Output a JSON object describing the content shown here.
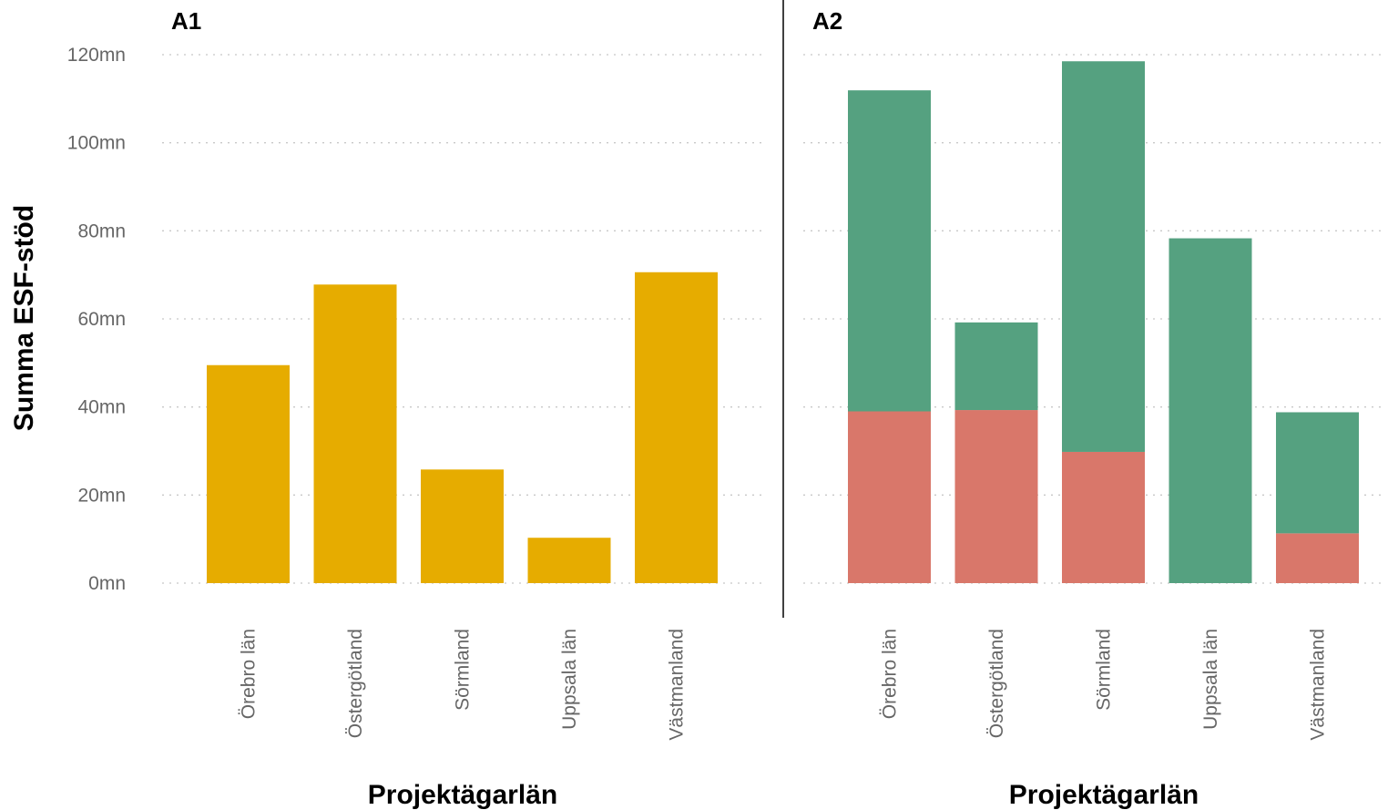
{
  "chart_data": [
    {
      "panel": "A1",
      "type": "bar",
      "title": "A1",
      "xlabel": "Projektägarlän",
      "ylabel": "Summa ESF-stöd",
      "categories": [
        "Örebro län",
        "Östergötland",
        "Sörmland",
        "Uppsala län",
        "Västmanland"
      ],
      "series": [
        {
          "values": [
            49.5,
            67.8,
            25.8,
            10.3,
            70.6
          ],
          "color": "#E6AC00"
        }
      ],
      "ylim": [
        0,
        120
      ],
      "yticks": [
        0,
        20,
        40,
        60,
        80,
        100,
        120
      ],
      "ytick_labels": [
        "0mn",
        "20mn",
        "40mn",
        "60mn",
        "80mn",
        "100mn",
        "120mn"
      ],
      "grid": "horizontal dotted"
    },
    {
      "panel": "A2",
      "type": "bar",
      "stacked": true,
      "title": "A2",
      "xlabel": "Projektägarlän",
      "categories": [
        "Örebro län",
        "Östergötland",
        "Sörmland",
        "Uppsala län",
        "Västmanland"
      ],
      "series": [
        {
          "values": [
            39.0,
            39.3,
            29.8,
            0,
            11.3
          ],
          "color": "#D9776A"
        },
        {
          "values": [
            72.9,
            19.9,
            88.7,
            78.3,
            27.5
          ],
          "color": "#55A180"
        }
      ],
      "ylim": [
        0,
        120
      ],
      "grid": "horizontal dotted"
    }
  ]
}
